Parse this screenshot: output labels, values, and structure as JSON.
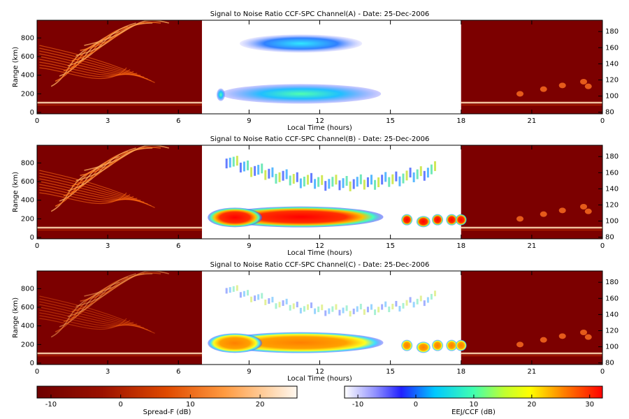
{
  "chart_data": [
    {
      "type": "heatmap",
      "title": "Signal to Noise Ratio CCF-SPC Channel(A) - Date: 25-Dec-2006",
      "x_label": "Local Time (hours)",
      "y_label": "Range (km)",
      "xlim": [
        0,
        24
      ],
      "xticks": [
        0,
        3,
        6,
        9,
        12,
        15,
        18,
        21,
        {
          "value": 24,
          "label": "0"
        }
      ],
      "ylim": [
        -15,
        990
      ],
      "yticks": [
        0,
        200,
        400,
        600,
        800
      ],
      "y2lim": [
        78,
        194
      ],
      "y2ticks": [
        80,
        100,
        120,
        140,
        160,
        180
      ]
    },
    {
      "type": "heatmap",
      "title": "Signal to Noise Ratio CCF-SPC Channel(B) - Date: 25-Dec-2006",
      "x_label": "Local Time (hours)",
      "y_label": "Range (km)",
      "xlim": [
        0,
        24
      ],
      "xticks": [
        0,
        3,
        6,
        9,
        12,
        15,
        18,
        21,
        {
          "value": 24,
          "label": "0"
        }
      ],
      "ylim": [
        -15,
        990
      ],
      "yticks": [
        0,
        200,
        400,
        600,
        800
      ],
      "y2lim": [
        78,
        194
      ],
      "y2ticks": [
        80,
        100,
        120,
        140,
        160,
        180
      ]
    },
    {
      "type": "heatmap",
      "title": "Signal to Noise Ratio CCF-SPC Channel(C) - Date: 25-Dec-2006",
      "x_label": "Local Time (hours)",
      "y_label": "Range (km)",
      "xlim": [
        0,
        24
      ],
      "xticks": [
        0,
        3,
        6,
        9,
        12,
        15,
        18,
        21,
        {
          "value": 24,
          "label": "0"
        }
      ],
      "ylim": [
        -15,
        990
      ],
      "yticks": [
        0,
        200,
        400,
        600,
        800
      ],
      "y2lim": [
        78,
        194
      ],
      "y2ticks": [
        80,
        100,
        120,
        140,
        160,
        180
      ]
    }
  ],
  "colorbars": [
    {
      "label": "Spread-F (dB)",
      "lim": [
        -12,
        25.3
      ],
      "ticks": [
        -10,
        0,
        10,
        20
      ]
    },
    {
      "label": "EEJ/CCF (dB)",
      "lim": [
        -12.3,
        32.2
      ],
      "ticks": [
        -10,
        0,
        10,
        20,
        30
      ]
    }
  ]
}
